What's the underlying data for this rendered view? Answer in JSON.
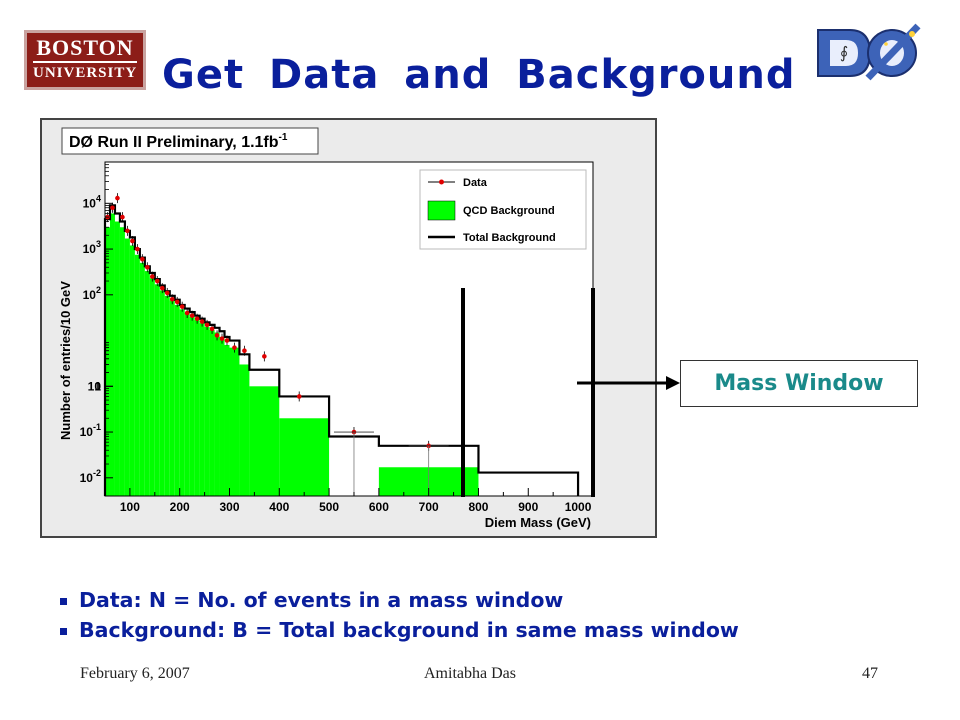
{
  "slide": {
    "title": "Get Data and Background",
    "logo_left": {
      "line1": "BOSTON",
      "line2": "UNIVERSITY"
    },
    "mass_window_label": "Mass Window",
    "bullets": [
      "Data: N = No. of events in a mass window",
      "Background: B = Total background in same mass window"
    ],
    "footer": {
      "date": "February 6, 2007",
      "author": "Amitabha Das",
      "page": "47"
    },
    "colors": {
      "title": "#0a1f9c",
      "mass_window_text": "#1a8a8a",
      "qcd_fill": "#00ff00",
      "data_marker": "#e00000"
    }
  },
  "chart_data": {
    "type": "histogram",
    "title": "DØ Run II Preliminary, 1.1fb",
    "title_superscript": "-1",
    "xlabel": "Diem Mass (GeV)",
    "ylabel": "Number of entries/10 GeV",
    "x_ticks": [
      "100",
      "200",
      "300",
      "400",
      "500",
      "600",
      "700",
      "800",
      "900",
      "1000"
    ],
    "y_ticks": [
      "10^-2",
      "10^-1",
      "1",
      "10",
      "10^2",
      "10^3",
      "10^4"
    ],
    "xlim": [
      50,
      1030
    ],
    "ylim": [
      0.004,
      80000
    ],
    "log_y": true,
    "legend": {
      "placement": "top-right",
      "entries": [
        "Data",
        "QCD Background",
        "Total Background"
      ]
    },
    "series": [
      {
        "name": "QCD Background",
        "style": "filled-step",
        "bins": [
          [
            50,
            60,
            3000
          ],
          [
            60,
            70,
            6000
          ],
          [
            70,
            80,
            4000
          ],
          [
            80,
            90,
            3000
          ],
          [
            90,
            100,
            1700
          ],
          [
            100,
            110,
            1200
          ],
          [
            110,
            120,
            750
          ],
          [
            120,
            130,
            500
          ],
          [
            130,
            140,
            330
          ],
          [
            140,
            150,
            230
          ],
          [
            150,
            160,
            170
          ],
          [
            160,
            170,
            125
          ],
          [
            170,
            180,
            95
          ],
          [
            180,
            190,
            75
          ],
          [
            190,
            200,
            60
          ],
          [
            200,
            210,
            48
          ],
          [
            210,
            220,
            40
          ],
          [
            220,
            230,
            33
          ],
          [
            230,
            240,
            28
          ],
          [
            240,
            250,
            24
          ],
          [
            250,
            260,
            20
          ],
          [
            260,
            270,
            17
          ],
          [
            270,
            280,
            15
          ],
          [
            280,
            290,
            12
          ],
          [
            290,
            300,
            8
          ],
          [
            300,
            320,
            7
          ],
          [
            320,
            340,
            3
          ],
          [
            340,
            400,
            1
          ],
          [
            400,
            500,
            0.2
          ],
          [
            600,
            800,
            0.017
          ],
          [
            800,
            1000,
            0.003
          ]
        ]
      },
      {
        "name": "Total Background",
        "style": "step",
        "bins": [
          [
            50,
            60,
            4500
          ],
          [
            60,
            70,
            9000
          ],
          [
            70,
            80,
            6000
          ],
          [
            80,
            90,
            4000
          ],
          [
            90,
            100,
            2500
          ],
          [
            100,
            110,
            1800
          ],
          [
            110,
            120,
            1000
          ],
          [
            120,
            130,
            650
          ],
          [
            130,
            140,
            420
          ],
          [
            140,
            150,
            300
          ],
          [
            150,
            160,
            220
          ],
          [
            160,
            170,
            160
          ],
          [
            170,
            180,
            120
          ],
          [
            180,
            190,
            95
          ],
          [
            190,
            200,
            78
          ],
          [
            200,
            210,
            60
          ],
          [
            210,
            220,
            50
          ],
          [
            220,
            230,
            42
          ],
          [
            230,
            240,
            35
          ],
          [
            240,
            250,
            30
          ],
          [
            250,
            260,
            25
          ],
          [
            260,
            270,
            22
          ],
          [
            270,
            280,
            19
          ],
          [
            280,
            290,
            16
          ],
          [
            290,
            300,
            12
          ],
          [
            300,
            320,
            10
          ],
          [
            320,
            340,
            5
          ],
          [
            340,
            400,
            2.3
          ],
          [
            400,
            500,
            0.6
          ],
          [
            500,
            600,
            0.08
          ],
          [
            600,
            800,
            0.05
          ],
          [
            800,
            1000,
            0.013
          ]
        ]
      },
      {
        "name": "Data",
        "style": "markers",
        "points": [
          [
            55,
            5000
          ],
          [
            65,
            8000
          ],
          [
            75,
            13000
          ],
          [
            85,
            5000
          ],
          [
            95,
            2500
          ],
          [
            105,
            1500
          ],
          [
            115,
            1000
          ],
          [
            125,
            600
          ],
          [
            135,
            400
          ],
          [
            145,
            250
          ],
          [
            155,
            200
          ],
          [
            165,
            140
          ],
          [
            175,
            110
          ],
          [
            185,
            80
          ],
          [
            195,
            70
          ],
          [
            205,
            55
          ],
          [
            215,
            40
          ],
          [
            225,
            35
          ],
          [
            235,
            30
          ],
          [
            245,
            26
          ],
          [
            255,
            22
          ],
          [
            265,
            18
          ],
          [
            275,
            13
          ],
          [
            285,
            11
          ],
          [
            295,
            10
          ],
          [
            310,
            7
          ],
          [
            330,
            6
          ],
          [
            370,
            4.5
          ],
          [
            440,
            0.6
          ],
          [
            550,
            0.1
          ],
          [
            700,
            0.05
          ]
        ]
      }
    ],
    "annotations": {
      "mass_window": {
        "x_range": [
          760,
          1000
        ],
        "label": "Mass Window"
      }
    }
  }
}
